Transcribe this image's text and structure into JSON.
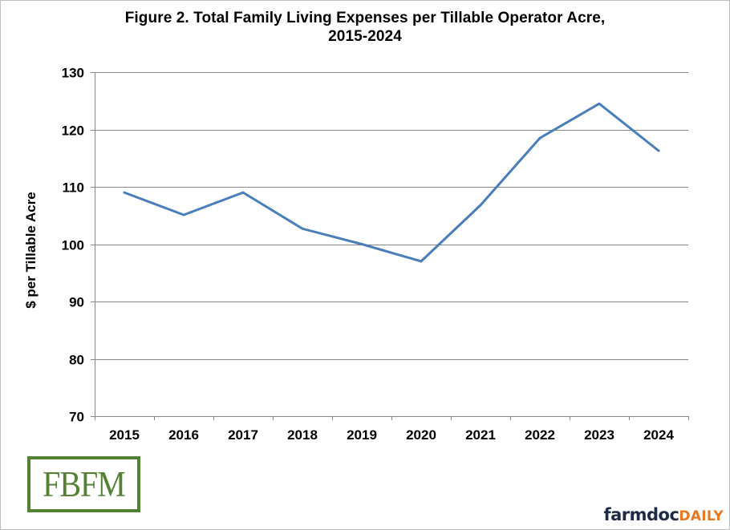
{
  "chart_data": {
    "type": "line",
    "title_line1": "Figure 2.  Total Family Living Expenses per Tillable Operator Acre,",
    "title_line2": "2015-2024",
    "xlabel": "",
    "ylabel": "$ per Tillable Acre",
    "ylim": [
      70,
      130
    ],
    "yticks": [
      70,
      80,
      90,
      100,
      110,
      120,
      130
    ],
    "categories": [
      "2015",
      "2016",
      "2017",
      "2018",
      "2019",
      "2020",
      "2021",
      "2022",
      "2023",
      "2024"
    ],
    "series": [
      {
        "name": "Total Family Living Expenses per Tillable Operator Acre",
        "color": "#4a7ebb",
        "values": [
          109.0,
          105.1,
          109.0,
          102.7,
          100.0,
          97.0,
          106.8,
          118.5,
          124.5,
          116.3
        ]
      }
    ],
    "grid": "horizontal",
    "legend": "none"
  },
  "logos": {
    "left": "FBFM",
    "right_part1": "farmdoc",
    "right_part2": "DAILY"
  },
  "colors": {
    "line": "#4a7ebb",
    "grid": "#868686",
    "fbfm_green": "#548235",
    "farmdoc_navy": "#1f2a44",
    "daily_orange": "#e87722"
  }
}
